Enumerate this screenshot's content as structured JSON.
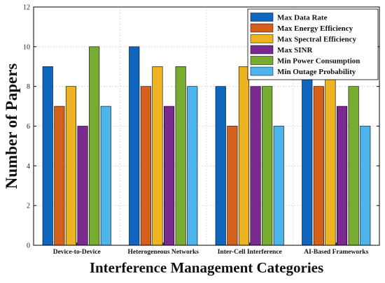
{
  "chart_data": {
    "type": "bar",
    "title": "",
    "xlabel": "Interference Management Categories",
    "ylabel": "Number of Papers",
    "ylim": [
      0,
      12
    ],
    "yticks": [
      0,
      2,
      4,
      6,
      8,
      10,
      12
    ],
    "grid": true,
    "legend_position": "top-right",
    "categories": [
      "Device-to-Device",
      "Heterogeneous Networks",
      "Inter-Cell Interference",
      "AI-Based Frameworks"
    ],
    "series": [
      {
        "name": "Max Data Rate",
        "color": "#0f66bf",
        "values": [
          9,
          10,
          8,
          9
        ]
      },
      {
        "name": "Max Energy Efficiency",
        "color": "#d4601c",
        "values": [
          7,
          8,
          6,
          8
        ]
      },
      {
        "name": "Max Spectral Efficiency",
        "color": "#eeb320",
        "values": [
          8,
          9,
          9,
          9
        ]
      },
      {
        "name": "Max SINR",
        "color": "#7a2a8e",
        "values": [
          6,
          7,
          8,
          7
        ]
      },
      {
        "name": "Min Power Consumption",
        "color": "#77ac30",
        "values": [
          10,
          9,
          8,
          8
        ]
      },
      {
        "name": "Min Outage Probability",
        "color": "#4db5ec",
        "values": [
          7,
          8,
          6,
          6
        ]
      }
    ]
  }
}
